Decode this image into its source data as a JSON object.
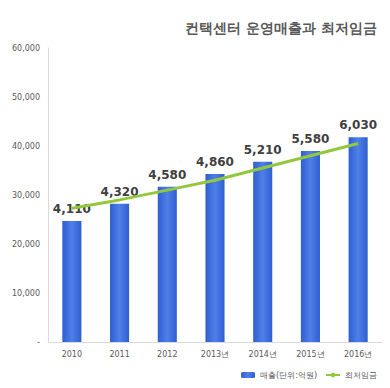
{
  "chart_data": {
    "type": "bar",
    "title": "컨택센터 운영매출과 최저임금",
    "categories": [
      "2010",
      "2011",
      "2012",
      "2013년",
      "2014년",
      "2015년",
      "2016년"
    ],
    "series": [
      {
        "name": "매출(단위:억원)",
        "type": "bar",
        "color": "#2f5fd0",
        "values": [
          24700,
          28200,
          31700,
          34300,
          36800,
          39000,
          41800
        ]
      },
      {
        "name": "최저임금",
        "type": "line",
        "color": "#92c83e",
        "marker": "none",
        "values": [
          27300,
          29000,
          31000,
          33000,
          35500,
          38000,
          40500
        ]
      }
    ],
    "annotations": [
      "4,110",
      "4,320",
      "4,580",
      "4,860",
      "5,210",
      "5,580",
      "6,030"
    ],
    "ylim": [
      0,
      60000
    ],
    "yticks": [
      {
        "value": 0,
        "label": "-"
      },
      {
        "value": 10000,
        "label": "10,000"
      },
      {
        "value": 20000,
        "label": "20,000"
      },
      {
        "value": 30000,
        "label": "30,000"
      },
      {
        "value": 40000,
        "label": "40,000"
      },
      {
        "value": 50000,
        "label": "50,000"
      },
      {
        "value": 60000,
        "label": "60,000"
      }
    ],
    "grid": false,
    "legend": "bottom"
  }
}
